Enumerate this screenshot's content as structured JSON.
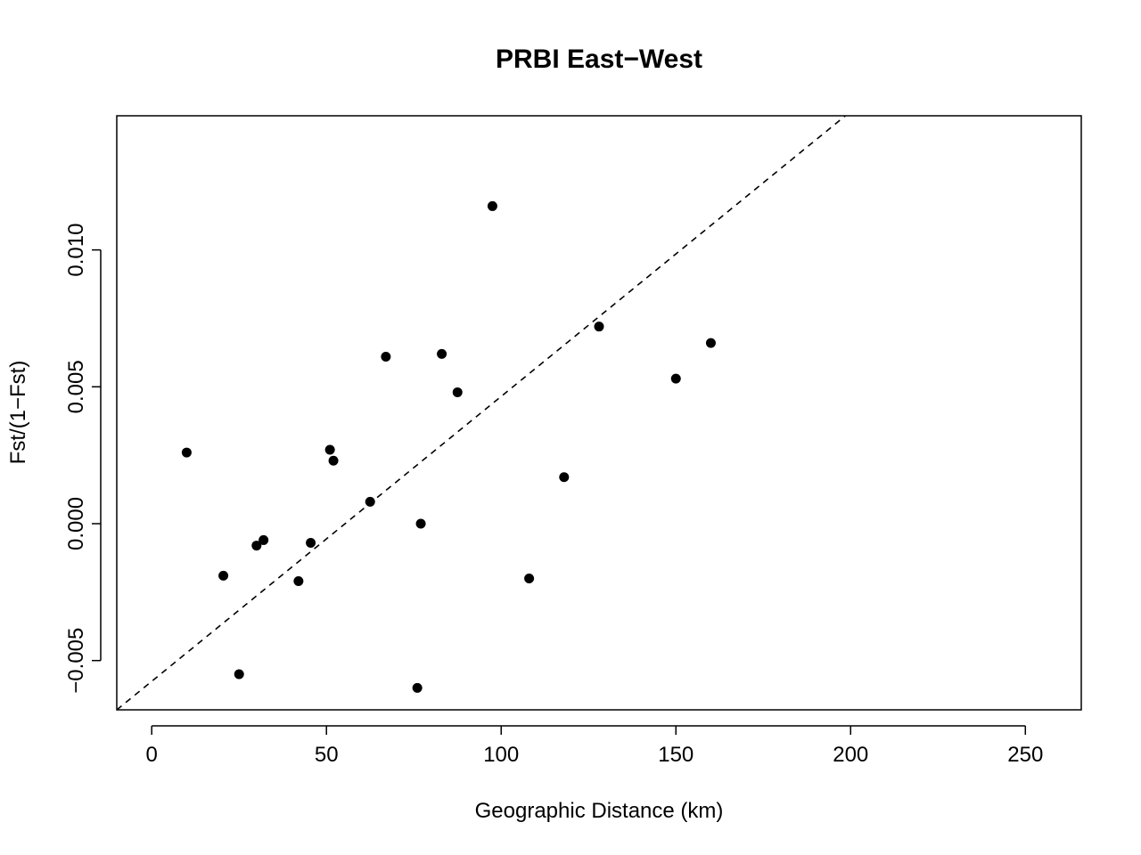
{
  "chart_data": {
    "type": "scatter",
    "title": "PRBI East−West",
    "xlabel": "Geographic Distance (km)",
    "ylabel": "Fst/(1−Fst)",
    "xlim": [
      -10,
      266
    ],
    "ylim": [
      -0.0068,
      0.0149
    ],
    "xticks": [
      0,
      50,
      100,
      150,
      200,
      250
    ],
    "xtick_labels": [
      "0",
      "50",
      "100",
      "150",
      "200",
      "250"
    ],
    "yticks": [
      -0.005,
      0.0,
      0.005,
      0.01
    ],
    "ytick_labels": [
      "−0.005",
      "0.000",
      "0.005",
      "0.010"
    ],
    "grid": false,
    "points": [
      {
        "x": 10,
        "y": 0.0026
      },
      {
        "x": 20.5,
        "y": -0.0019
      },
      {
        "x": 25,
        "y": -0.0055
      },
      {
        "x": 30,
        "y": -0.0008
      },
      {
        "x": 32,
        "y": -0.0006
      },
      {
        "x": 42,
        "y": -0.0021
      },
      {
        "x": 45.5,
        "y": -0.0007
      },
      {
        "x": 51,
        "y": 0.0027
      },
      {
        "x": 52,
        "y": 0.0023
      },
      {
        "x": 62.5,
        "y": 0.0008
      },
      {
        "x": 67,
        "y": 0.0061
      },
      {
        "x": 76,
        "y": -0.006
      },
      {
        "x": 77,
        "y": 0.0
      },
      {
        "x": 83,
        "y": 0.0062
      },
      {
        "x": 87.5,
        "y": 0.0048
      },
      {
        "x": 97.5,
        "y": 0.0116
      },
      {
        "x": 108,
        "y": -0.002
      },
      {
        "x": 118,
        "y": 0.0017
      },
      {
        "x": 128,
        "y": 0.0072
      },
      {
        "x": 150,
        "y": 0.0053
      },
      {
        "x": 160,
        "y": 0.0066
      }
    ],
    "trend_line": {
      "style": "dashed",
      "from": {
        "x": -10,
        "y": -0.0068
      },
      "to": {
        "x": 198.5,
        "y": 0.0149
      }
    }
  }
}
